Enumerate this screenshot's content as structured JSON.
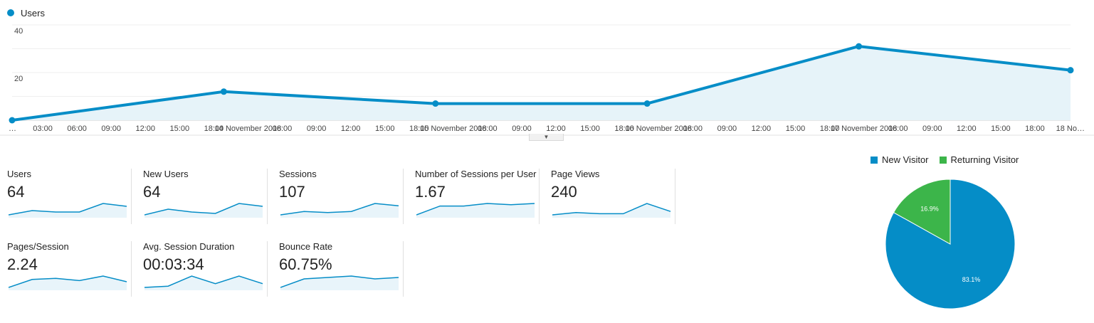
{
  "legend": {
    "series_label": "Users",
    "series_color": "#058dc7"
  },
  "chart_data": {
    "type": "area",
    "series": [
      {
        "name": "Users",
        "color": "#058dc7"
      }
    ],
    "x": [
      "13 November 2018",
      "14 November 2018",
      "15 November 2018",
      "16 November 2018",
      "17 November 2018",
      "18 November 2018"
    ],
    "values": [
      0,
      12,
      7,
      7,
      31,
      21
    ],
    "ylim": [
      0,
      40
    ],
    "y_ticks": [
      "40",
      "20"
    ],
    "x_tick_labels": [
      "…",
      "03:00",
      "06:00",
      "09:00",
      "12:00",
      "15:00",
      "18:00",
      "14 November 2018",
      "06:00",
      "09:00",
      "12:00",
      "15:00",
      "18:00",
      "15 November 2018",
      "06:00",
      "09:00",
      "12:00",
      "15:00",
      "18:00",
      "16 November 2018",
      "06:00",
      "09:00",
      "12:00",
      "15:00",
      "18:00",
      "17 November 2018",
      "06:00",
      "09:00",
      "12:00",
      "15:00",
      "18:00",
      "18 No…"
    ],
    "grid": true
  },
  "expand_handle_icon": "chevron-down-icon",
  "metrics": [
    {
      "label": "Users",
      "value": "64",
      "trend": [
        0,
        3,
        2,
        2,
        8,
        6
      ]
    },
    {
      "label": "New Users",
      "value": "64",
      "trend": [
        0,
        4,
        2,
        1,
        8,
        6
      ]
    },
    {
      "label": "Sessions",
      "value": "107",
      "trend": [
        0,
        3,
        2,
        3,
        10,
        8
      ]
    },
    {
      "label": "Number of Sessions per User",
      "value": "1.67",
      "trend": [
        0,
        7,
        7,
        9,
        8,
        9
      ]
    },
    {
      "label": "Page Views",
      "value": "240",
      "trend": [
        0,
        2,
        1,
        1,
        10,
        3
      ]
    },
    {
      "label": "Pages/Session",
      "value": "2.24",
      "trend": [
        0,
        7,
        8,
        6,
        10,
        5
      ]
    },
    {
      "label": "Avg. Session Duration",
      "value": "00:03:34",
      "trend": [
        0,
        1,
        9,
        3,
        9,
        3
      ]
    },
    {
      "label": "Bounce Rate",
      "value": "60.75%",
      "trend": [
        0,
        6,
        7,
        8,
        6,
        7
      ]
    }
  ],
  "pie": {
    "legend": [
      {
        "label": "New Visitor",
        "color": "#058dc7"
      },
      {
        "label": "Returning Visitor",
        "color": "#3cb54a"
      }
    ],
    "slices": [
      {
        "label": "Returning Visitor",
        "value": 16.9,
        "text": "16.9%",
        "color": "#3cb54a"
      },
      {
        "label": "New Visitor",
        "value": 83.1,
        "text": "83.1%",
        "color": "#058dc7"
      }
    ]
  }
}
